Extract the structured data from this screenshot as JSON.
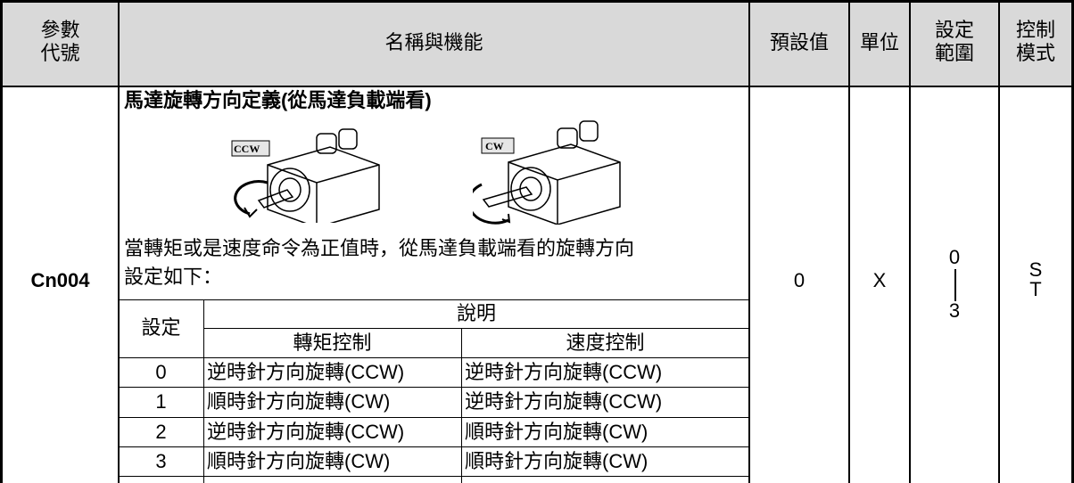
{
  "table": {
    "headers": [
      [
        "參數",
        "代號"
      ],
      "名稱與機能",
      "預設值",
      "單位",
      [
        "設定",
        "範圍"
      ],
      [
        "控制",
        "模式"
      ]
    ],
    "row": {
      "code": "Cn004",
      "title": "馬達旋轉方向定義(從馬達負載端看)",
      "images": [
        "CCW",
        "CW"
      ],
      "description": [
        "當轉矩或是速度命令為正值時，從馬達負載端看的旋轉方向",
        "設定如下："
      ],
      "inner_table": {
        "headers": [
          "設定",
          "說明",
          "轉矩控制",
          "速度控制"
        ],
        "rows": [
          [
            "0",
            "逆時針方向旋轉(CCW)",
            "逆時針方向旋轉(CCW)"
          ],
          [
            "1",
            "順時針方向旋轉(CW)",
            "逆時針方向旋轉(CCW)"
          ],
          [
            "2",
            "逆時針方向旋轉(CCW)",
            "順時針方向旋轉(CW)"
          ],
          [
            "3",
            "順時針方向旋轉(CW)",
            "順時針方向旋轉(CW)"
          ]
        ]
      },
      "default": "0",
      "unit": "X",
      "range": [
        "0",
        "3"
      ],
      "mode": [
        "S",
        "T"
      ]
    }
  }
}
